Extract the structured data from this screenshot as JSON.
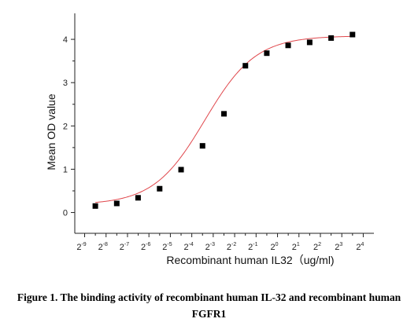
{
  "chart_data": {
    "type": "scatter",
    "xlabel": "Recombinant human  IL32（ug/ml)",
    "ylabel": "Mean OD value",
    "x_scale": "log2",
    "x_tick_base": "2",
    "x_tick_exponents": [
      "-9",
      "-8",
      "-7",
      "-6",
      "-5",
      "-4",
      "-3",
      "-2",
      "-1",
      "0",
      "1",
      "2",
      "3",
      "4"
    ],
    "y_ticks": [
      "0",
      "1",
      "2",
      "3",
      "4"
    ],
    "xlim": [
      0.00142,
      22.6
    ],
    "ylim": [
      -0.48,
      4.6
    ],
    "series": [
      {
        "marker": "square",
        "color": "#000000",
        "x": [
          0.00276,
          0.00552,
          0.011,
          0.0221,
          0.0442,
          0.0884,
          0.177,
          0.354,
          0.707,
          1.41,
          2.83,
          5.66,
          11.3
        ],
        "y": [
          0.15,
          0.21,
          0.34,
          0.55,
          0.99,
          1.54,
          2.28,
          3.39,
          3.68,
          3.86,
          3.93,
          4.03,
          4.11
        ]
      }
    ],
    "fit": {
      "type": "4PL",
      "color": "#e0474c",
      "bottom": 0.18,
      "top": 4.08,
      "ec50": 0.095,
      "hill": 1.21
    }
  },
  "caption": "Figure 1. The binding activity of recombinant human IL-32 and recombinant human FGFR1"
}
